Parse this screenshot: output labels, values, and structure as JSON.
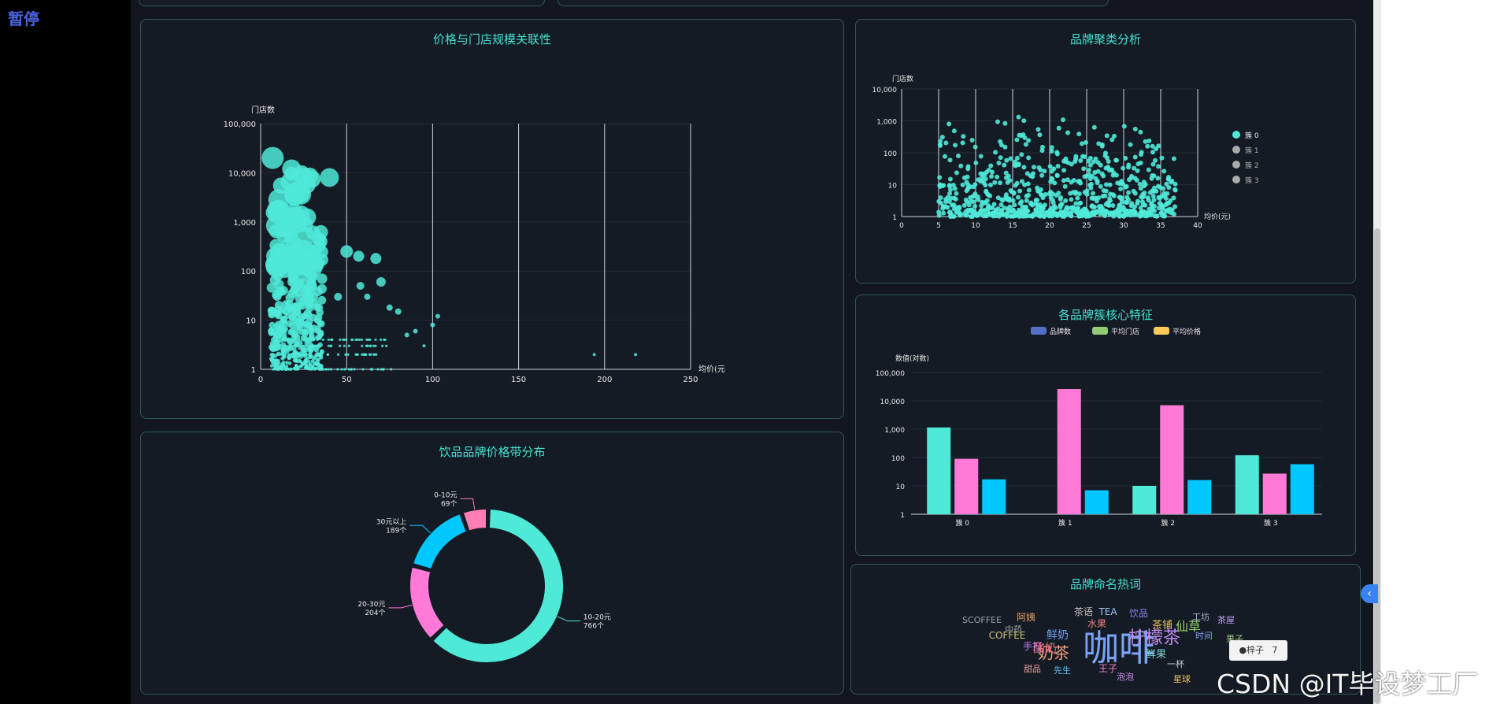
{
  "pause_label": "暂停",
  "watermark": "CSDN @IT毕设梦工厂",
  "tooltip": {
    "label": "●梓子",
    "value": "7"
  },
  "colors": {
    "accent": "#45e0d0",
    "cyan": "#4fe9d8",
    "pink": "#ff7ad7",
    "blue": "#00c8ff",
    "panel_border": "#2f5953",
    "background": "#111620"
  },
  "panels": {
    "price_scale": {
      "title": "价格与门店规模关联性",
      "ylabel": "门店数",
      "xlabel": "均价(元",
      "yticks": [
        "100,000",
        "10,000",
        "1,000",
        "100",
        "10",
        "1"
      ],
      "xticks": [
        "0",
        "50",
        "100",
        "150",
        "200",
        "250"
      ]
    },
    "cluster": {
      "title": "品牌聚类分析",
      "ylabel": "门店数",
      "xlabel": "均价(元)",
      "yticks": [
        "10,000",
        "1,000",
        "100",
        "10",
        "1"
      ],
      "xticks": [
        "0",
        "5",
        "10",
        "15",
        "20",
        "25",
        "30",
        "35",
        "40"
      ],
      "legend": [
        "簇 0",
        "簇 1",
        "簇 2",
        "簇 3"
      ]
    },
    "cluster_features": {
      "title": "各品牌簇核心特征",
      "legend": [
        "品牌数",
        "平均门店",
        "平均价格"
      ],
      "ylabel": "数值(对数)",
      "yticks": [
        "100,000",
        "10,000",
        "1,000",
        "100",
        "10",
        "1"
      ]
    },
    "price_band": {
      "title": "饮品品牌价格带分布",
      "slices": [
        {
          "name": "10-20元",
          "count_label": "766个",
          "value": 766,
          "color": "#4fe9d8"
        },
        {
          "name": "20-30元",
          "count_label": "204个",
          "value": 204,
          "color": "#ff7ad7"
        },
        {
          "name": "30元以上",
          "count_label": "189个",
          "value": 189,
          "color": "#00c8ff"
        },
        {
          "name": "0-10元",
          "count_label": "69个",
          "value": 69,
          "color": "#ff7eb6"
        }
      ]
    },
    "wordcloud": {
      "title": "品牌命名热词",
      "words": [
        {
          "text": "咖啡",
          "color": "#7aa2f7",
          "size": 46
        },
        {
          "text": "柠檬茶",
          "color": "#c08cf0",
          "size": 22
        },
        {
          "text": "奶茶",
          "color": "#f0a080",
          "size": 20
        },
        {
          "text": "仙草",
          "color": "#8fd16c",
          "size": 16
        },
        {
          "text": "鲜奶",
          "color": "#6fa0f0",
          "size": 14
        },
        {
          "text": "茶铺",
          "color": "#e0c060",
          "size": 13
        },
        {
          "text": "酸奶",
          "color": "#f06a8a",
          "size": 15
        },
        {
          "text": "COFFEE",
          "color": "#d0c070",
          "size": 12
        },
        {
          "text": "SCOFFEE",
          "color": "#9aa0a8",
          "size": 11
        },
        {
          "text": "水果",
          "color": "#f07a7a",
          "size": 12
        },
        {
          "text": "茶语",
          "color": "#c0c0c0",
          "size": 12
        },
        {
          "text": "TEA",
          "color": "#a0c0f0",
          "size": 12
        },
        {
          "text": "饮品",
          "color": "#9080f0",
          "size": 12
        },
        {
          "text": "阿姨",
          "color": "#e0a060",
          "size": 12
        },
        {
          "text": "鲜果",
          "color": "#80d0d0",
          "size": 13
        },
        {
          "text": "王子",
          "color": "#f080c0",
          "size": 12
        },
        {
          "text": "先生",
          "color": "#60c0f0",
          "size": 11
        },
        {
          "text": "甜品",
          "color": "#f0a0a0",
          "size": 11
        },
        {
          "text": "手打",
          "color": "#c080f0",
          "size": 12
        },
        {
          "text": "中药",
          "color": "#a0a0a0",
          "size": 11
        },
        {
          "text": "时间",
          "color": "#80a0f0",
          "size": 11
        },
        {
          "text": "工坊",
          "color": "#b0b0d0",
          "size": 11
        },
        {
          "text": "果子",
          "color": "#a0d080",
          "size": 11
        },
        {
          "text": "茶屋",
          "color": "#c0a0f0",
          "size": 11
        },
        {
          "text": "一杯",
          "color": "#d0d0d0",
          "size": 11
        },
        {
          "text": "星球",
          "color": "#f0c060",
          "size": 11
        },
        {
          "text": "泡泡",
          "color": "#d090f0",
          "size": 11
        }
      ]
    }
  }
}
